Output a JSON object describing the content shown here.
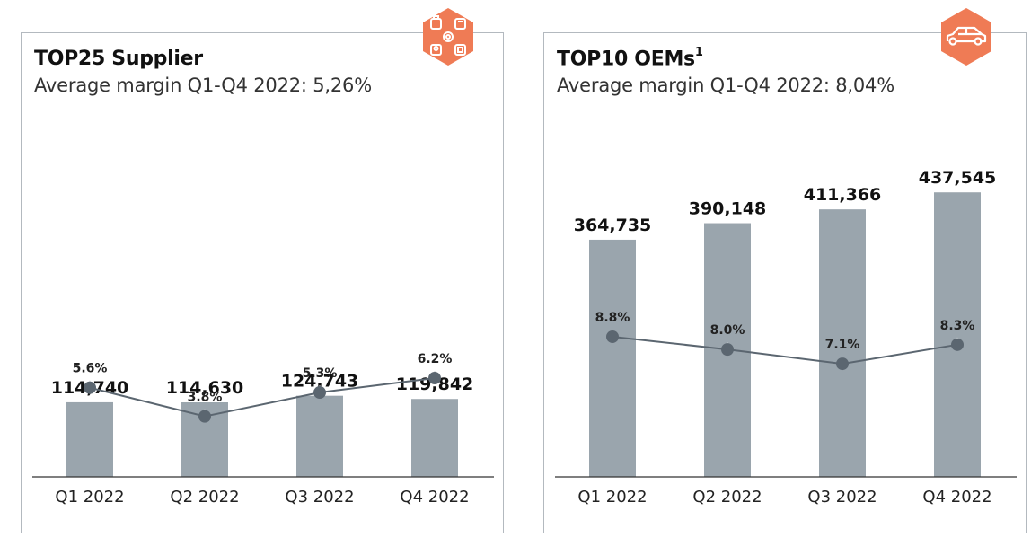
{
  "chart_data": [
    {
      "type": "bar",
      "title": "TOP25 Supplier",
      "subtitle": "Average margin Q1-Q4 2022: 5,26%",
      "categories": [
        "Q1 2022",
        "Q2 2022",
        "Q3 2022",
        "Q4 2022"
      ],
      "bar_labels": [
        "114,740",
        "114,630",
        "124,743",
        "119,842"
      ],
      "values": [
        114740,
        114630,
        124743,
        119842
      ],
      "ylim": [
        0,
        500000
      ],
      "line": {
        "values": [
          5.6,
          3.8,
          5.3,
          6.2
        ],
        "labels": [
          "5.6%",
          "3.8%",
          "5.3%",
          "6.2%"
        ],
        "ylim": [
          0,
          15
        ]
      },
      "grid": false,
      "icon": "supplier-network-icon"
    },
    {
      "type": "bar",
      "title": "TOP10 OEMs",
      "title_superscript": "1",
      "subtitle": "Average margin Q1-Q4 2022: 8,04%",
      "categories": [
        "Q1 2022",
        "Q2 2022",
        "Q3 2022",
        "Q4 2022"
      ],
      "bar_labels": [
        "364,735",
        "390,148",
        "411,366",
        "437,545"
      ],
      "values": [
        364735,
        390148,
        411366,
        437545
      ],
      "ylim": [
        0,
        500000
      ],
      "line": {
        "values": [
          8.8,
          8.0,
          7.1,
          8.3
        ],
        "labels": [
          "8.8%",
          "8.0%",
          "7.1%",
          "8.3%"
        ],
        "ylim": [
          0,
          15
        ]
      },
      "grid": false,
      "icon": "car-icon"
    }
  ],
  "colors": {
    "bar": "#9aa5ad",
    "line": "#5b6670",
    "badge": "#ef7b55",
    "border": "#b3b9bf"
  }
}
